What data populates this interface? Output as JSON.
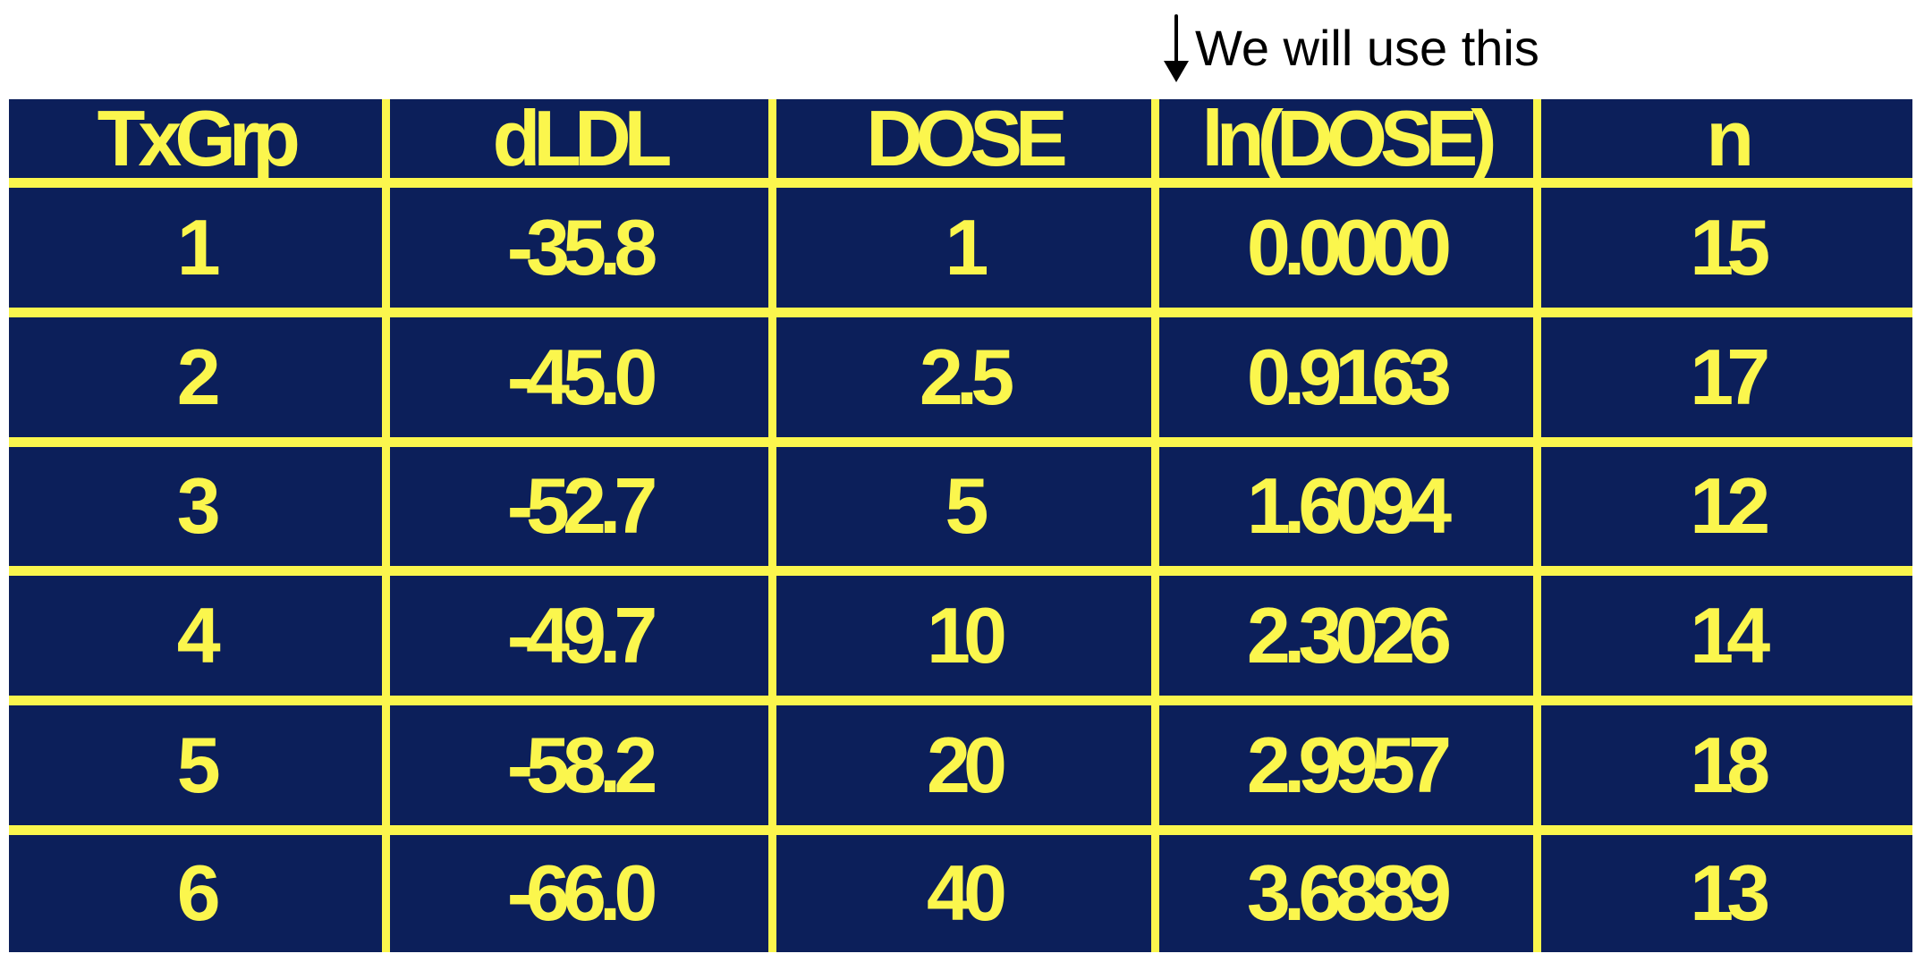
{
  "annotation": {
    "text": "We will use this",
    "icon": "down-arrow-icon"
  },
  "table": {
    "columns": [
      "TxGrp",
      "dLDL",
      "DOSE",
      "ln(DOSE)",
      "n"
    ],
    "rows": [
      [
        "1",
        "-35.8",
        "1",
        "0.0000",
        "15"
      ],
      [
        "2",
        "-45.0",
        "2.5",
        "0.9163",
        "17"
      ],
      [
        "3",
        "-52.7",
        "5",
        "1.6094",
        "12"
      ],
      [
        "4",
        "-49.7",
        "10",
        "2.3026",
        "14"
      ],
      [
        "5",
        "-58.2",
        "20",
        "2.9957",
        "18"
      ],
      [
        "6",
        "-66.0",
        "40",
        "3.6889",
        "13"
      ]
    ]
  },
  "colors": {
    "table_background": "#0c1f5a",
    "table_text_and_grid": "#fbf64d",
    "annotation_text": "#000000"
  }
}
